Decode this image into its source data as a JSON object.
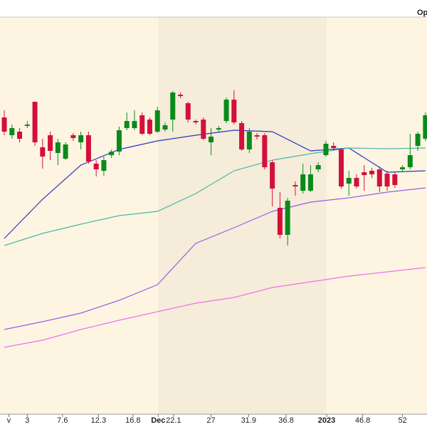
{
  "chart_data": {
    "type": "candlestick",
    "header_text": "Ope",
    "x": [
      0,
      1,
      2,
      3,
      4,
      5,
      6,
      7,
      8,
      9,
      10,
      11,
      12,
      13,
      14,
      15,
      16,
      17,
      18,
      19,
      20,
      21,
      22,
      23,
      24,
      25,
      26,
      27,
      28,
      29,
      30,
      31,
      32,
      33,
      34,
      35,
      36,
      37,
      38,
      39,
      40,
      41,
      42,
      43,
      44,
      45,
      46,
      47,
      48,
      49,
      50,
      51,
      52,
      53,
      54,
      55
    ],
    "open": [
      435,
      410,
      415,
      423,
      457,
      393,
      410,
      385,
      377,
      410,
      400,
      410,
      370,
      360,
      382,
      387,
      420,
      420,
      438,
      432,
      415,
      418,
      432,
      467,
      455,
      430,
      432,
      400,
      418,
      430,
      460,
      427,
      390,
      410,
      410,
      372,
      308,
      270,
      340,
      332,
      332,
      362,
      382,
      395,
      390,
      342,
      350,
      358,
      360,
      362,
      356,
      355,
      362,
      365,
      395,
      405
    ],
    "high": [
      445,
      425,
      420,
      430,
      457,
      405,
      415,
      405,
      400,
      413,
      415,
      415,
      375,
      380,
      390,
      422,
      442,
      445,
      442,
      435,
      450,
      428,
      472,
      470,
      457,
      432,
      435,
      420,
      423,
      463,
      473,
      430,
      420,
      413,
      413,
      375,
      330,
      322,
      345,
      370,
      368,
      372,
      402,
      400,
      392,
      360,
      355,
      368,
      364,
      366,
      360,
      358,
      368,
      412,
      415,
      442
    ],
    "low": [
      410,
      405,
      400,
      420,
      395,
      363,
      375,
      368,
      375,
      402,
      390,
      370,
      352,
      353,
      378,
      382,
      417,
      417,
      410,
      410,
      413,
      415,
      415,
      462,
      428,
      425,
      403,
      382,
      415,
      427,
      425,
      388,
      385,
      404,
      362,
      310,
      265,
      255,
      325,
      328,
      330,
      358,
      380,
      388,
      335,
      325,
      335,
      332,
      350,
      330,
      332,
      336,
      358,
      362,
      388,
      402
    ],
    "close": [
      415,
      420,
      405,
      425,
      400,
      380,
      388,
      400,
      397,
      406,
      410,
      373,
      362,
      375,
      387,
      417,
      430,
      430,
      412,
      412,
      445,
      424,
      470,
      465,
      432,
      428,
      405,
      408,
      420,
      460,
      428,
      390,
      415,
      408,
      365,
      335,
      270,
      318,
      338,
      355,
      355,
      368,
      398,
      392,
      338,
      350,
      338,
      354,
      355,
      338,
      338,
      340,
      365,
      382,
      412,
      438
    ],
    "up_color": "#0b8a1a",
    "down_color": "#d3103c",
    "overlay_x": [
      0,
      5,
      10,
      15,
      20,
      25,
      30,
      35,
      40,
      45,
      50,
      55
    ],
    "overlays": [
      {
        "color": "#2a35c0",
        "values": [
          265,
          320,
          368,
          390,
          402,
          410,
          417,
          415,
          388,
          392,
          358,
          360
        ]
      },
      {
        "color": "#4db6a6",
        "values": [
          255,
          272,
          285,
          297,
          303,
          328,
          360,
          375,
          384,
          392,
          391,
          392
        ]
      },
      {
        "color": "#9a5ce6",
        "values": [
          137,
          148,
          160,
          178,
          200,
          258,
          280,
          303,
          316,
          322,
          330,
          336
        ]
      },
      {
        "color": "#ee70ee",
        "values": [
          112,
          122,
          137,
          150,
          162,
          174,
          182,
          196,
          204,
          212,
          218,
          224
        ]
      }
    ],
    "xlim": [
      -0.56,
      55.2
    ],
    "ylim": [
      0,
      600
    ],
    "xticks": [
      {
        "value": 0.6,
        "label": "v"
      },
      3,
      7.6,
      12.3,
      16.8,
      {
        "value": 20.1,
        "label": "Dec"
      },
      22.1,
      27,
      31.9,
      36.8,
      {
        "value": 42.1,
        "label": "2023"
      },
      46.8,
      52
    ],
    "shaded_range": [
      20.1,
      42.1
    ]
  }
}
